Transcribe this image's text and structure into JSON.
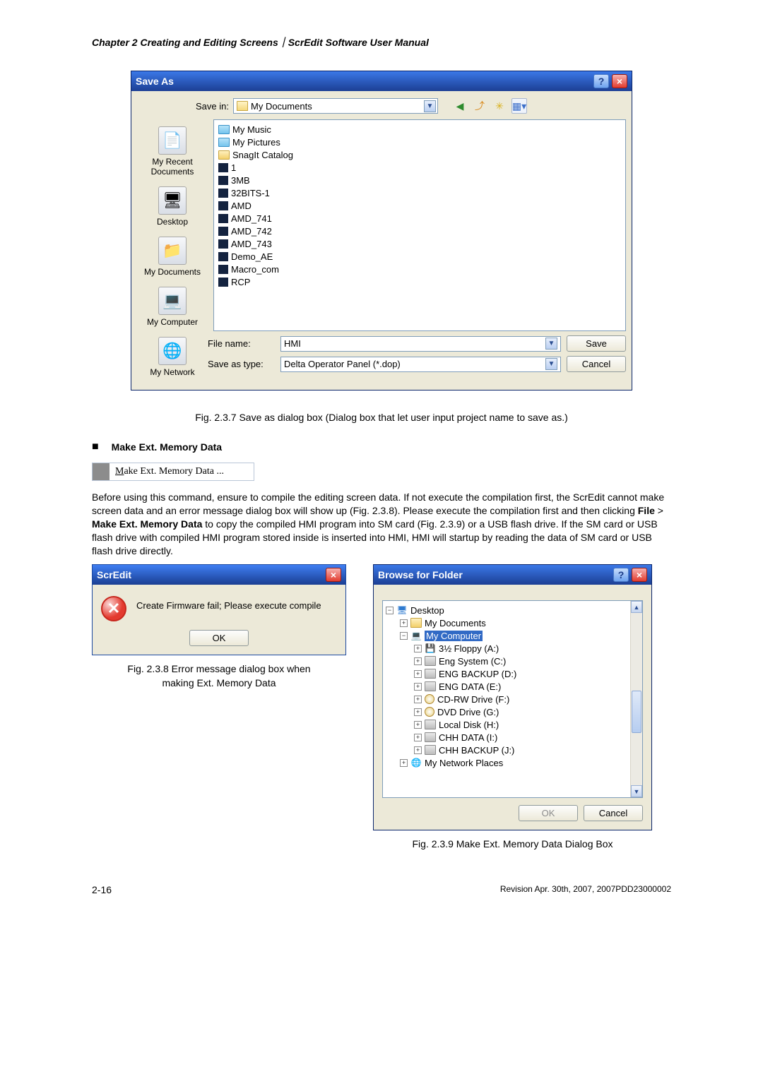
{
  "header": "Chapter 2  Creating and Editing Screens｜ScrEdit Software User Manual",
  "saveas": {
    "title": "Save As",
    "savein_label": "Save in:",
    "savein_value": "My Documents",
    "places": [
      "My Recent\nDocuments",
      "Desktop",
      "My Documents",
      "My Computer",
      "My Network"
    ],
    "files": [
      {
        "type": "special",
        "name": "My Music"
      },
      {
        "type": "special",
        "name": "My Pictures"
      },
      {
        "type": "folder",
        "name": "SnagIt Catalog"
      },
      {
        "type": "dop",
        "name": "1"
      },
      {
        "type": "dop",
        "name": "3MB"
      },
      {
        "type": "dop",
        "name": "32BITS-1"
      },
      {
        "type": "dop",
        "name": "AMD"
      },
      {
        "type": "dop",
        "name": "AMD_741"
      },
      {
        "type": "dop",
        "name": "AMD_742"
      },
      {
        "type": "dop",
        "name": "AMD_743"
      },
      {
        "type": "dop",
        "name": "Demo_AE"
      },
      {
        "type": "dop",
        "name": "Macro_com"
      },
      {
        "type": "dop",
        "name": "RCP"
      }
    ],
    "filename_label": "File name:",
    "filename_value": "HMI",
    "saveastype_label": "Save as type:",
    "saveastype_value": "Delta Operator Panel (*.dop)",
    "save_btn": "Save",
    "cancel_btn": "Cancel"
  },
  "cap_237": "Fig. 2.3.7 Save as dialog box (Dialog box that let user input project name to save as.)",
  "section_title": "Make Ext. Memory Data",
  "menu_item": {
    "underline": "M",
    "rest": "ake Ext. Memory Data ..."
  },
  "para": "Before using this command, ensure to compile the editing screen data. If not execute the compilation first, the ScrEdit cannot make screen data and an error message dialog box will show up (Fig. 2.3.8). Please execute the compilation first and then clicking File > Make Ext. Memory Data to copy the compiled HMI program into SM card (Fig. 2.3.9) or a USB flash drive. If the SM card or USB flash drive with compiled HMI program stored inside is inserted into HMI, HMI will startup by reading the data of SM card or USB flash drive directly.",
  "para_bold1": "File",
  "para_bold2": "Make Ext. Memory Data",
  "err": {
    "title": "ScrEdit",
    "msg": "Create Firmware fail; Please execute compile",
    "ok": "OK"
  },
  "cap_238a": "Fig. 2.3.8 Error message dialog box when",
  "cap_238b": "making Ext. Memory Data",
  "bff": {
    "title": "Browse for Folder",
    "nodes": [
      {
        "indent": 0,
        "pm": "−",
        "icon": "desktop",
        "label": "Desktop",
        "sel": false
      },
      {
        "indent": 1,
        "pm": "+",
        "icon": "folder",
        "label": "My Documents",
        "sel": false
      },
      {
        "indent": 1,
        "pm": "−",
        "icon": "computer",
        "label": "My Computer",
        "sel": true
      },
      {
        "indent": 2,
        "pm": "+",
        "icon": "floppy",
        "label": "3½ Floppy (A:)",
        "sel": false
      },
      {
        "indent": 2,
        "pm": "+",
        "icon": "disk",
        "label": "Eng System (C:)",
        "sel": false
      },
      {
        "indent": 2,
        "pm": "+",
        "icon": "disk",
        "label": "ENG BACKUP (D:)",
        "sel": false
      },
      {
        "indent": 2,
        "pm": "+",
        "icon": "disk",
        "label": "ENG DATA (E:)",
        "sel": false
      },
      {
        "indent": 2,
        "pm": "+",
        "icon": "cd",
        "label": "CD-RW Drive (F:)",
        "sel": false
      },
      {
        "indent": 2,
        "pm": "+",
        "icon": "cd",
        "label": "DVD Drive (G:)",
        "sel": false
      },
      {
        "indent": 2,
        "pm": "+",
        "icon": "disk",
        "label": "Local Disk (H:)",
        "sel": false
      },
      {
        "indent": 2,
        "pm": "+",
        "icon": "disk",
        "label": "CHH DATA (I:)",
        "sel": false
      },
      {
        "indent": 2,
        "pm": "+",
        "icon": "disk",
        "label": "CHH BACKUP (J:)",
        "sel": false
      },
      {
        "indent": 1,
        "pm": "+",
        "icon": "network",
        "label": "My Network Places",
        "sel": false
      }
    ],
    "ok": "OK",
    "cancel": "Cancel"
  },
  "cap_239": "Fig. 2.3.9 Make Ext. Memory Data Dialog Box",
  "footer_page": "2-16",
  "footer_rev": "Revision Apr. 30th, 2007, 2007PDD23000002"
}
